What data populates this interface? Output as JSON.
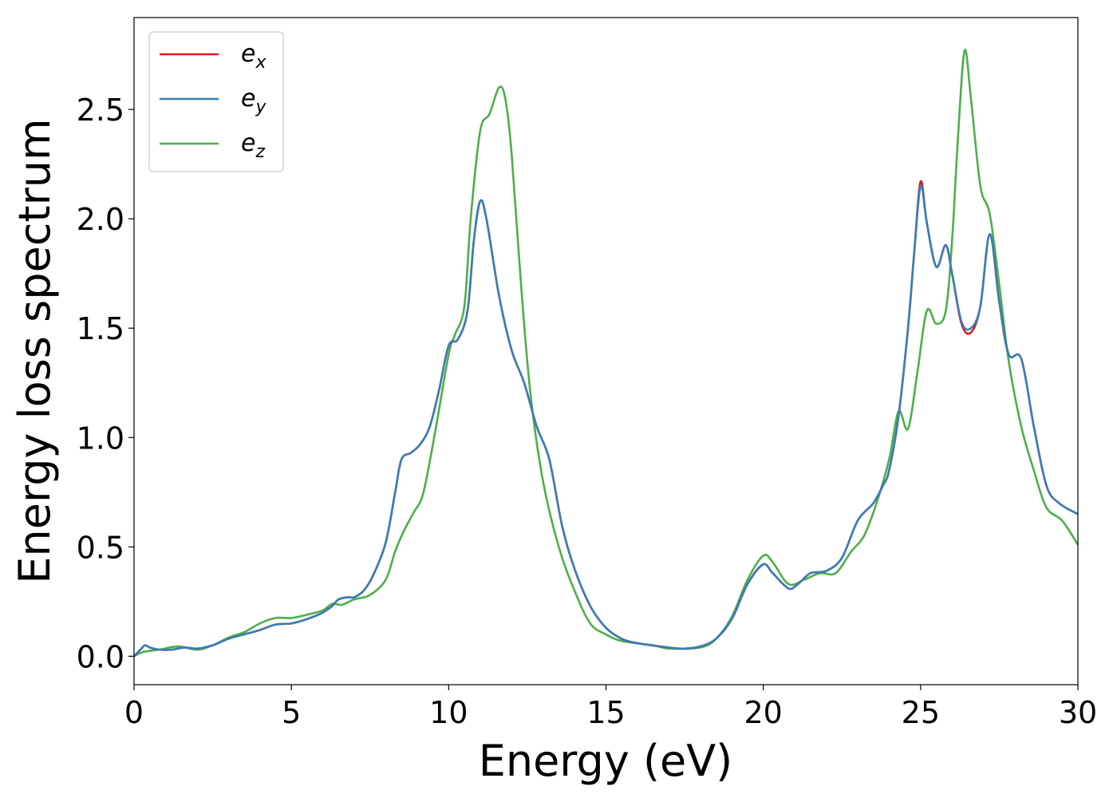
{
  "chart_data": {
    "type": "line",
    "title": "",
    "xlabel": "Energy (eV)",
    "ylabel": "Energy loss spectrum",
    "xlim": [
      0,
      30
    ],
    "ylim": [
      -0.13,
      2.92
    ],
    "xticks": [
      0,
      5,
      10,
      15,
      20,
      25,
      30
    ],
    "xtick_labels": [
      "0",
      "5",
      "10",
      "15",
      "20",
      "25",
      "30"
    ],
    "yticks": [
      0.0,
      0.5,
      1.0,
      1.5,
      2.0,
      2.5
    ],
    "ytick_labels": [
      "0.0",
      "0.5",
      "1.0",
      "1.5",
      "2.0",
      "2.5"
    ],
    "grid": false,
    "legend_position": "top-left",
    "series": [
      {
        "name": "e_x",
        "base": "e",
        "sub": "x",
        "color": "#e41a1c",
        "points": [
          [
            0,
            0
          ],
          [
            0.2,
            0.03
          ],
          [
            0.35,
            0.05
          ],
          [
            0.5,
            0.04
          ],
          [
            0.8,
            0.03
          ],
          [
            1.2,
            0.03
          ],
          [
            1.6,
            0.04
          ],
          [
            2.0,
            0.035
          ],
          [
            2.5,
            0.05
          ],
          [
            3.0,
            0.08
          ],
          [
            3.5,
            0.1
          ],
          [
            4.0,
            0.12
          ],
          [
            4.5,
            0.145
          ],
          [
            5.0,
            0.15
          ],
          [
            5.5,
            0.17
          ],
          [
            6.0,
            0.2
          ],
          [
            6.3,
            0.23
          ],
          [
            6.5,
            0.26
          ],
          [
            6.8,
            0.27
          ],
          [
            7.0,
            0.27
          ],
          [
            7.3,
            0.3
          ],
          [
            7.6,
            0.37
          ],
          [
            8.0,
            0.52
          ],
          [
            8.3,
            0.75
          ],
          [
            8.5,
            0.9
          ],
          [
            8.8,
            0.93
          ],
          [
            9.1,
            0.97
          ],
          [
            9.4,
            1.05
          ],
          [
            9.7,
            1.22
          ],
          [
            10.0,
            1.42
          ],
          [
            10.3,
            1.45
          ],
          [
            10.6,
            1.58
          ],
          [
            10.8,
            1.9
          ],
          [
            11.0,
            2.08
          ],
          [
            11.2,
            2.0
          ],
          [
            11.6,
            1.65
          ],
          [
            12.0,
            1.4
          ],
          [
            12.4,
            1.25
          ],
          [
            12.8,
            1.05
          ],
          [
            13.2,
            0.9
          ],
          [
            13.6,
            0.6
          ],
          [
            14.0,
            0.4
          ],
          [
            14.5,
            0.23
          ],
          [
            15.0,
            0.13
          ],
          [
            15.5,
            0.08
          ],
          [
            16.0,
            0.06
          ],
          [
            17.0,
            0.04
          ],
          [
            17.5,
            0.035
          ],
          [
            18.0,
            0.045
          ],
          [
            18.5,
            0.08
          ],
          [
            19.0,
            0.17
          ],
          [
            19.5,
            0.33
          ],
          [
            20.0,
            0.42
          ],
          [
            20.3,
            0.38
          ],
          [
            20.8,
            0.31
          ],
          [
            21.1,
            0.33
          ],
          [
            21.5,
            0.38
          ],
          [
            22.0,
            0.39
          ],
          [
            22.5,
            0.45
          ],
          [
            23.0,
            0.62
          ],
          [
            23.5,
            0.7
          ],
          [
            23.8,
            0.78
          ],
          [
            24.0,
            0.85
          ],
          [
            24.3,
            1.1
          ],
          [
            24.6,
            1.5
          ],
          [
            24.8,
            1.85
          ],
          [
            25.0,
            2.17
          ],
          [
            25.2,
            1.98
          ],
          [
            25.5,
            1.78
          ],
          [
            25.8,
            1.88
          ],
          [
            26.0,
            1.75
          ],
          [
            26.3,
            1.52
          ],
          [
            26.6,
            1.48
          ],
          [
            26.9,
            1.6
          ],
          [
            27.2,
            1.93
          ],
          [
            27.5,
            1.62
          ],
          [
            27.8,
            1.38
          ],
          [
            28.2,
            1.36
          ],
          [
            28.6,
            1.05
          ],
          [
            29.0,
            0.78
          ],
          [
            29.4,
            0.7
          ],
          [
            30.0,
            0.65
          ]
        ]
      },
      {
        "name": "e_y",
        "base": "e",
        "sub": "y",
        "color": "#377eb8",
        "points": [
          [
            0,
            0
          ],
          [
            0.2,
            0.03
          ],
          [
            0.35,
            0.05
          ],
          [
            0.5,
            0.04
          ],
          [
            0.8,
            0.03
          ],
          [
            1.2,
            0.03
          ],
          [
            1.6,
            0.04
          ],
          [
            2.0,
            0.035
          ],
          [
            2.5,
            0.05
          ],
          [
            3.0,
            0.08
          ],
          [
            3.5,
            0.1
          ],
          [
            4.0,
            0.12
          ],
          [
            4.5,
            0.145
          ],
          [
            5.0,
            0.15
          ],
          [
            5.5,
            0.17
          ],
          [
            6.0,
            0.2
          ],
          [
            6.3,
            0.23
          ],
          [
            6.5,
            0.26
          ],
          [
            6.8,
            0.27
          ],
          [
            7.0,
            0.27
          ],
          [
            7.3,
            0.3
          ],
          [
            7.6,
            0.37
          ],
          [
            8.0,
            0.52
          ],
          [
            8.3,
            0.75
          ],
          [
            8.5,
            0.9
          ],
          [
            8.8,
            0.93
          ],
          [
            9.1,
            0.97
          ],
          [
            9.4,
            1.05
          ],
          [
            9.7,
            1.22
          ],
          [
            10.0,
            1.42
          ],
          [
            10.3,
            1.45
          ],
          [
            10.6,
            1.58
          ],
          [
            10.8,
            1.9
          ],
          [
            11.0,
            2.08
          ],
          [
            11.2,
            2.0
          ],
          [
            11.6,
            1.65
          ],
          [
            12.0,
            1.4
          ],
          [
            12.4,
            1.25
          ],
          [
            12.8,
            1.05
          ],
          [
            13.2,
            0.9
          ],
          [
            13.6,
            0.6
          ],
          [
            14.0,
            0.4
          ],
          [
            14.5,
            0.23
          ],
          [
            15.0,
            0.13
          ],
          [
            15.5,
            0.08
          ],
          [
            16.0,
            0.06
          ],
          [
            17.0,
            0.04
          ],
          [
            17.5,
            0.035
          ],
          [
            18.0,
            0.045
          ],
          [
            18.5,
            0.08
          ],
          [
            19.0,
            0.17
          ],
          [
            19.5,
            0.33
          ],
          [
            20.0,
            0.42
          ],
          [
            20.3,
            0.38
          ],
          [
            20.8,
            0.31
          ],
          [
            21.1,
            0.33
          ],
          [
            21.5,
            0.38
          ],
          [
            22.0,
            0.39
          ],
          [
            22.5,
            0.45
          ],
          [
            23.0,
            0.62
          ],
          [
            23.5,
            0.7
          ],
          [
            23.8,
            0.78
          ],
          [
            24.0,
            0.85
          ],
          [
            24.3,
            1.1
          ],
          [
            24.6,
            1.5
          ],
          [
            24.8,
            1.85
          ],
          [
            25.0,
            2.15
          ],
          [
            25.2,
            1.98
          ],
          [
            25.5,
            1.78
          ],
          [
            25.8,
            1.88
          ],
          [
            26.0,
            1.75
          ],
          [
            26.3,
            1.53
          ],
          [
            26.6,
            1.5
          ],
          [
            26.9,
            1.6
          ],
          [
            27.2,
            1.93
          ],
          [
            27.5,
            1.62
          ],
          [
            27.8,
            1.38
          ],
          [
            28.2,
            1.36
          ],
          [
            28.6,
            1.05
          ],
          [
            29.0,
            0.78
          ],
          [
            29.4,
            0.7
          ],
          [
            30.0,
            0.65
          ]
        ]
      },
      {
        "name": "e_z",
        "base": "e",
        "sub": "z",
        "color": "#4daf4a",
        "points": [
          [
            0,
            0
          ],
          [
            0.3,
            0.02
          ],
          [
            0.8,
            0.03
          ],
          [
            1.4,
            0.045
          ],
          [
            2.0,
            0.03
          ],
          [
            2.5,
            0.05
          ],
          [
            3.0,
            0.085
          ],
          [
            3.5,
            0.11
          ],
          [
            4.0,
            0.15
          ],
          [
            4.5,
            0.175
          ],
          [
            5.0,
            0.175
          ],
          [
            5.5,
            0.19
          ],
          [
            6.0,
            0.21
          ],
          [
            6.3,
            0.24
          ],
          [
            6.6,
            0.235
          ],
          [
            7.0,
            0.26
          ],
          [
            7.5,
            0.28
          ],
          [
            8.0,
            0.35
          ],
          [
            8.3,
            0.48
          ],
          [
            8.6,
            0.58
          ],
          [
            8.9,
            0.66
          ],
          [
            9.2,
            0.75
          ],
          [
            9.6,
            1.05
          ],
          [
            10.0,
            1.38
          ],
          [
            10.2,
            1.47
          ],
          [
            10.5,
            1.6
          ],
          [
            10.7,
            2.0
          ],
          [
            11.0,
            2.4
          ],
          [
            11.3,
            2.48
          ],
          [
            11.6,
            2.6
          ],
          [
            11.8,
            2.55
          ],
          [
            12.0,
            2.3
          ],
          [
            12.3,
            1.7
          ],
          [
            12.6,
            1.2
          ],
          [
            13.0,
            0.8
          ],
          [
            13.5,
            0.5
          ],
          [
            14.0,
            0.3
          ],
          [
            14.5,
            0.15
          ],
          [
            15.0,
            0.1
          ],
          [
            15.5,
            0.07
          ],
          [
            16.5,
            0.05
          ],
          [
            17.0,
            0.035
          ],
          [
            18.0,
            0.04
          ],
          [
            18.5,
            0.08
          ],
          [
            19.0,
            0.18
          ],
          [
            19.5,
            0.35
          ],
          [
            20.0,
            0.46
          ],
          [
            20.3,
            0.43
          ],
          [
            20.8,
            0.33
          ],
          [
            21.3,
            0.35
          ],
          [
            21.8,
            0.38
          ],
          [
            22.3,
            0.38
          ],
          [
            22.8,
            0.48
          ],
          [
            23.2,
            0.55
          ],
          [
            23.6,
            0.7
          ],
          [
            24.0,
            0.9
          ],
          [
            24.3,
            1.12
          ],
          [
            24.6,
            1.04
          ],
          [
            24.9,
            1.3
          ],
          [
            25.2,
            1.58
          ],
          [
            25.5,
            1.52
          ],
          [
            25.8,
            1.58
          ],
          [
            26.0,
            1.9
          ],
          [
            26.2,
            2.4
          ],
          [
            26.4,
            2.77
          ],
          [
            26.6,
            2.55
          ],
          [
            26.9,
            2.15
          ],
          [
            27.2,
            2.02
          ],
          [
            27.5,
            1.7
          ],
          [
            27.8,
            1.35
          ],
          [
            28.2,
            1.05
          ],
          [
            28.6,
            0.85
          ],
          [
            29.0,
            0.68
          ],
          [
            29.5,
            0.62
          ],
          [
            30.0,
            0.51
          ]
        ]
      }
    ]
  }
}
